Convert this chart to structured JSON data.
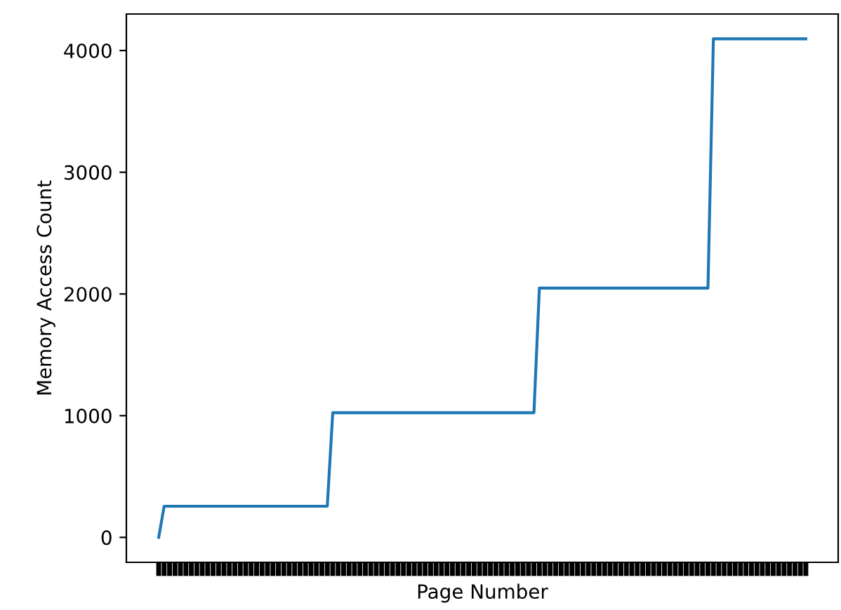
{
  "chart_data": {
    "type": "line",
    "xlabel": "Page Number",
    "ylabel": "Memory Access Count",
    "categories": [
      null,
      null,
      null,
      null,
      null,
      null,
      null,
      null,
      null,
      null,
      null,
      null,
      null,
      null,
      null,
      null,
      null,
      null,
      null,
      null,
      null,
      null,
      null,
      null,
      null,
      null,
      null,
      null,
      null,
      null,
      null,
      null,
      null,
      null,
      null,
      null,
      null,
      null,
      null,
      null,
      null,
      null,
      null,
      null,
      null,
      null,
      null,
      null,
      null,
      null,
      null,
      null,
      null,
      null,
      null,
      null,
      null,
      null,
      null,
      null,
      null,
      null,
      null,
      null,
      null,
      null,
      null,
      null,
      null,
      null,
      null,
      null,
      null,
      null,
      null,
      null,
      null,
      null,
      null,
      null,
      null,
      null,
      null,
      null,
      null,
      null,
      null,
      null,
      null,
      null,
      null,
      null,
      null,
      null,
      null,
      null,
      null,
      null,
      null,
      null,
      null,
      null,
      null,
      null,
      null,
      null,
      null,
      null,
      null,
      null,
      null,
      null,
      null,
      null,
      null,
      null,
      null,
      null,
      null,
      null
    ],
    "series": [
      {
        "color": "#1f77b4",
        "values": [
          0,
          256,
          256,
          256,
          256,
          256,
          256,
          256,
          256,
          256,
          256,
          256,
          256,
          256,
          256,
          256,
          256,
          256,
          256,
          256,
          256,
          256,
          256,
          256,
          256,
          256,
          256,
          256,
          256,
          256,
          256,
          256,
          1024,
          1024,
          1024,
          1024,
          1024,
          1024,
          1024,
          1024,
          1024,
          1024,
          1024,
          1024,
          1024,
          1024,
          1024,
          1024,
          1024,
          1024,
          1024,
          1024,
          1024,
          1024,
          1024,
          1024,
          1024,
          1024,
          1024,
          1024,
          1024,
          1024,
          1024,
          1024,
          1024,
          1024,
          1024,
          1024,
          1024,
          1024,
          2048,
          2048,
          2048,
          2048,
          2048,
          2048,
          2048,
          2048,
          2048,
          2048,
          2048,
          2048,
          2048,
          2048,
          2048,
          2048,
          2048,
          2048,
          2048,
          2048,
          2048,
          2048,
          2048,
          2048,
          2048,
          2048,
          2048,
          2048,
          2048,
          2048,
          2048,
          2048,
          4096,
          4096,
          4096,
          4096,
          4096,
          4096,
          4096,
          4096,
          4096,
          4096,
          4096,
          4096,
          4096,
          4096,
          4096,
          4096,
          4096,
          4096
        ]
      }
    ],
    "ylim": [
      -205,
      4300
    ],
    "yticks": [
      0,
      1000,
      2000,
      3000,
      4000
    ],
    "tick_labels": "y",
    "grid": false,
    "legend": false,
    "line_style": "solid",
    "marker": "none"
  }
}
